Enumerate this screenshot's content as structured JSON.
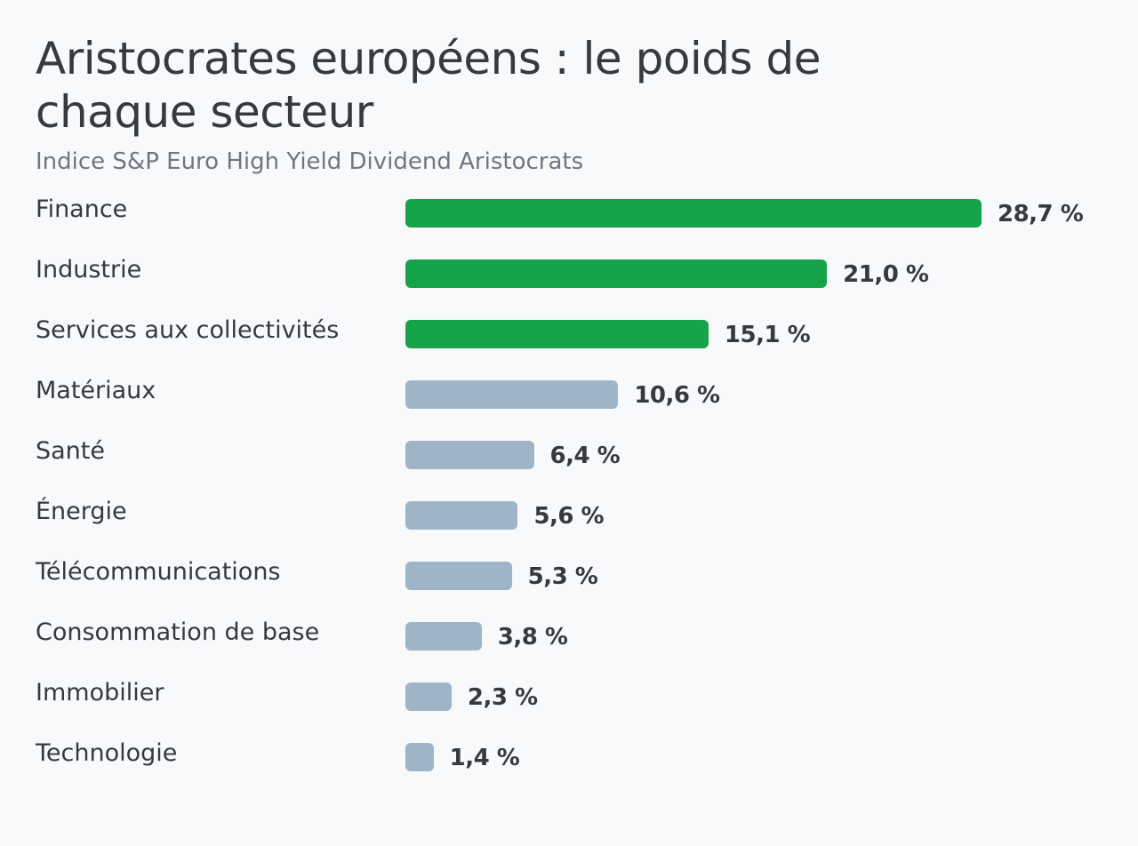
{
  "chart_data": {
    "type": "bar",
    "orientation": "horizontal",
    "title": "Aristocrates européens : le poids de chaque secteur",
    "subtitle": "Indice S&P Euro High Yield Dividend Aristocrats",
    "unit": "%",
    "categories": [
      "Finance",
      "Industrie",
      "Services aux collectivités",
      "Matériaux",
      "Santé",
      "Énergie",
      "Télécommunications",
      "Consommation de base",
      "Immobilier",
      "Technologie"
    ],
    "values": [
      28.7,
      21.0,
      15.1,
      10.6,
      6.4,
      5.6,
      5.3,
      3.8,
      2.3,
      1.4
    ],
    "value_labels": [
      "28,7 %",
      "21,0 %",
      "15,1 %",
      "10,6 %",
      "6,4 %",
      "5,6 %",
      "5,3 %",
      "3,8 %",
      "2,3 %",
      "1,4 %"
    ],
    "highlighted_count": 3,
    "colors": {
      "highlight": "#17a34a",
      "default": "#a0b4c8"
    },
    "grid": false,
    "legend": "none"
  }
}
